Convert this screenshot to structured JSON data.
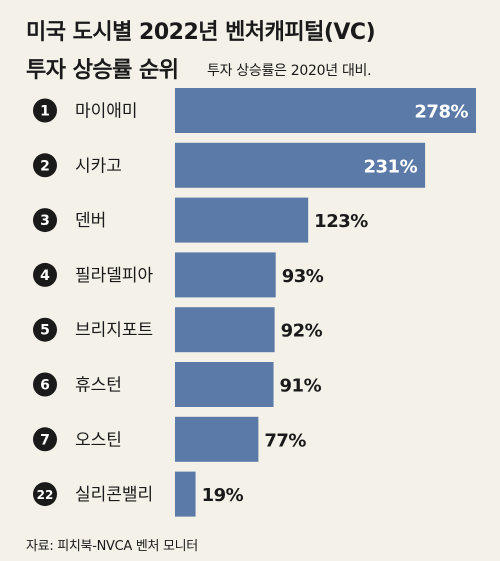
{
  "title_line1": "미국 도시별 2022년 벤처캐피털(VC)",
  "title_line2": "투자 상승률 순위",
  "subtitle": "투자 상승률은 2020년 대비.",
  "source": "자료: 피치북-NVCA 벤처 모니터",
  "colors": {
    "bar": "#5b7aa8",
    "background": "#f4f1e8",
    "badge": "#1a1a1a"
  },
  "chart_data": {
    "type": "bar",
    "orientation": "horizontal",
    "unit": "%",
    "categories": [
      "마이애미",
      "시카고",
      "덴버",
      "필라델피아",
      "브리지포트",
      "휴스턴",
      "오스틴",
      "실리콘밸리"
    ],
    "ranks": [
      "1",
      "2",
      "3",
      "4",
      "5",
      "6",
      "7",
      "22"
    ],
    "values": [
      278,
      231,
      123,
      93,
      92,
      91,
      77,
      19
    ],
    "value_labels": [
      "278%",
      "231%",
      "123%",
      "93%",
      "92%",
      "91%",
      "77%",
      "19%"
    ],
    "xlim": [
      0,
      278
    ],
    "grid": false,
    "legend": "none"
  }
}
